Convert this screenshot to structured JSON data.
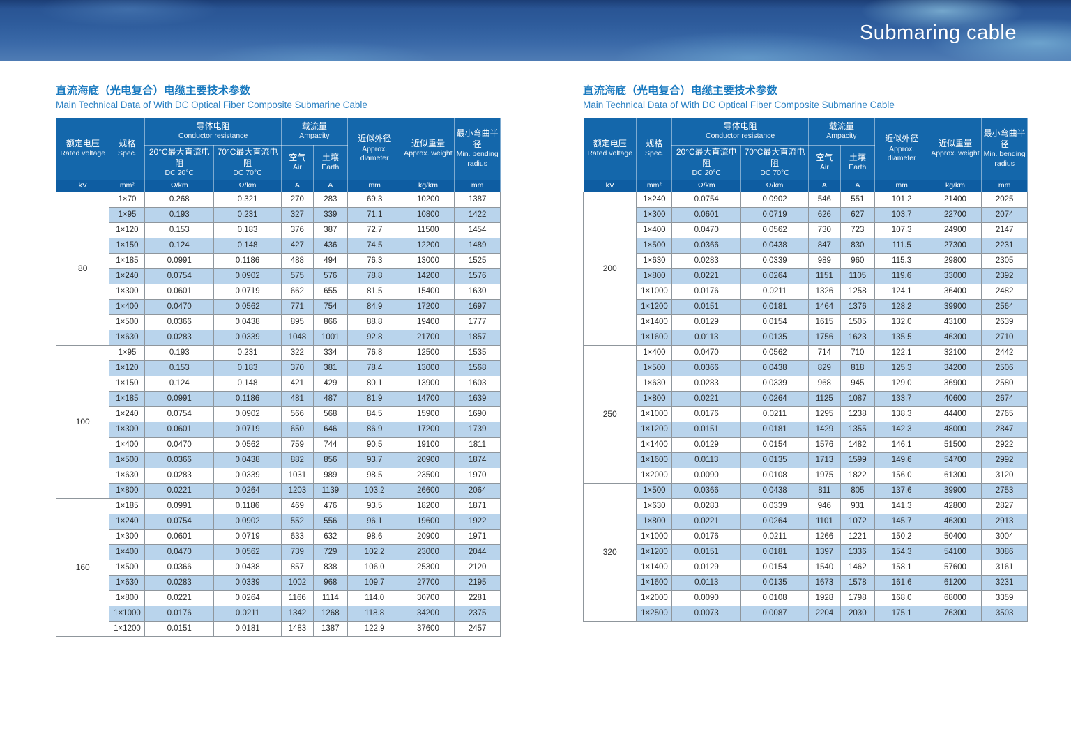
{
  "banner": {
    "title": "Submaring cable"
  },
  "table_header": {
    "groups": {
      "conductor_resistance": {
        "zh": "导体电阻",
        "en": "Conductor resistance"
      },
      "ampacity": {
        "zh": "载流量",
        "en": "Ampacity"
      }
    },
    "columns": [
      {
        "id": "rated_voltage",
        "zh": "额定电压",
        "en": "Rated voltage",
        "unit": "kV"
      },
      {
        "id": "spec",
        "zh": "规格",
        "en": "Spec.",
        "unit": "mm²"
      },
      {
        "id": "dc20",
        "zh": "20°C最大直流电阻",
        "en": "DC 20°C",
        "unit": "Ω/km",
        "group": "conductor_resistance"
      },
      {
        "id": "dc70",
        "zh": "70°C最大直流电阻",
        "en": "DC 70°C",
        "unit": "Ω/km",
        "group": "conductor_resistance"
      },
      {
        "id": "air",
        "zh": "空气",
        "en": "Air",
        "unit": "A",
        "group": "ampacity"
      },
      {
        "id": "earth",
        "zh": "土壤",
        "en": "Earth",
        "unit": "A",
        "group": "ampacity"
      },
      {
        "id": "diameter",
        "zh": "近似外径",
        "en": "Approx. diameter",
        "unit": "mm"
      },
      {
        "id": "weight",
        "zh": "近似重量",
        "en": "Approx. weight",
        "unit": "kg/km"
      },
      {
        "id": "radius",
        "zh": "最小弯曲半径",
        "en": "Min. bending radius",
        "unit": "mm"
      }
    ],
    "col_widths": [
      "12%",
      "8%",
      "15.5%",
      "15.2%",
      "7.2%",
      "7.7%",
      "12.2%",
      "11.9%",
      "10.3%"
    ]
  },
  "tables": [
    {
      "title_zh": "直流海底（光电复合）电缆主要技术参数",
      "title_en": "Main Technical Data of With DC Optical Fiber Composite Submarine Cable",
      "sections": [
        {
          "voltage": "80",
          "rows": [
            [
              "1×70",
              "0.268",
              "0.321",
              "270",
              "283",
              "69.3",
              "10200",
              "1387"
            ],
            [
              "1×95",
              "0.193",
              "0.231",
              "327",
              "339",
              "71.1",
              "10800",
              "1422"
            ],
            [
              "1×120",
              "0.153",
              "0.183",
              "376",
              "387",
              "72.7",
              "11500",
              "1454"
            ],
            [
              "1×150",
              "0.124",
              "0.148",
              "427",
              "436",
              "74.5",
              "12200",
              "1489"
            ],
            [
              "1×185",
              "0.0991",
              "0.1186",
              "488",
              "494",
              "76.3",
              "13000",
              "1525"
            ],
            [
              "1×240",
              "0.0754",
              "0.0902",
              "575",
              "576",
              "78.8",
              "14200",
              "1576"
            ],
            [
              "1×300",
              "0.0601",
              "0.0719",
              "662",
              "655",
              "81.5",
              "15400",
              "1630"
            ],
            [
              "1×400",
              "0.0470",
              "0.0562",
              "771",
              "754",
              "84.9",
              "17200",
              "1697"
            ],
            [
              "1×500",
              "0.0366",
              "0.0438",
              "895",
              "866",
              "88.8",
              "19400",
              "1777"
            ],
            [
              "1×630",
              "0.0283",
              "0.0339",
              "1048",
              "1001",
              "92.8",
              "21700",
              "1857"
            ]
          ]
        },
        {
          "voltage": "100",
          "rows": [
            [
              "1×95",
              "0.193",
              "0.231",
              "322",
              "334",
              "76.8",
              "12500",
              "1535"
            ],
            [
              "1×120",
              "0.153",
              "0.183",
              "370",
              "381",
              "78.4",
              "13000",
              "1568"
            ],
            [
              "1×150",
              "0.124",
              "0.148",
              "421",
              "429",
              "80.1",
              "13900",
              "1603"
            ],
            [
              "1×185",
              "0.0991",
              "0.1186",
              "481",
              "487",
              "81.9",
              "14700",
              "1639"
            ],
            [
              "1×240",
              "0.0754",
              "0.0902",
              "566",
              "568",
              "84.5",
              "15900",
              "1690"
            ],
            [
              "1×300",
              "0.0601",
              "0.0719",
              "650",
              "646",
              "86.9",
              "17200",
              "1739"
            ],
            [
              "1×400",
              "0.0470",
              "0.0562",
              "759",
              "744",
              "90.5",
              "19100",
              "1811"
            ],
            [
              "1×500",
              "0.0366",
              "0.0438",
              "882",
              "856",
              "93.7",
              "20900",
              "1874"
            ],
            [
              "1×630",
              "0.0283",
              "0.0339",
              "1031",
              "989",
              "98.5",
              "23500",
              "1970"
            ],
            [
              "1×800",
              "0.0221",
              "0.0264",
              "1203",
              "1139",
              "103.2",
              "26600",
              "2064"
            ]
          ]
        },
        {
          "voltage": "160",
          "rows": [
            [
              "1×185",
              "0.0991",
              "0.1186",
              "469",
              "476",
              "93.5",
              "18200",
              "1871"
            ],
            [
              "1×240",
              "0.0754",
              "0.0902",
              "552",
              "556",
              "96.1",
              "19600",
              "1922"
            ],
            [
              "1×300",
              "0.0601",
              "0.0719",
              "633",
              "632",
              "98.6",
              "20900",
              "1971"
            ],
            [
              "1×400",
              "0.0470",
              "0.0562",
              "739",
              "729",
              "102.2",
              "23000",
              "2044"
            ],
            [
              "1×500",
              "0.0366",
              "0.0438",
              "857",
              "838",
              "106.0",
              "25300",
              "2120"
            ],
            [
              "1×630",
              "0.0283",
              "0.0339",
              "1002",
              "968",
              "109.7",
              "27700",
              "2195"
            ],
            [
              "1×800",
              "0.0221",
              "0.0264",
              "1166",
              "1114",
              "114.0",
              "30700",
              "2281"
            ],
            [
              "1×1000",
              "0.0176",
              "0.0211",
              "1342",
              "1268",
              "118.8",
              "34200",
              "2375"
            ],
            [
              "1×1200",
              "0.0151",
              "0.0181",
              "1483",
              "1387",
              "122.9",
              "37600",
              "2457"
            ]
          ]
        }
      ]
    },
    {
      "title_zh": "直流海底（光电复合）电缆主要技术参数",
      "title_en": "Main Technical Data of With DC Optical Fiber Composite Submarine Cable",
      "sections": [
        {
          "voltage": "200",
          "rows": [
            [
              "1×240",
              "0.0754",
              "0.0902",
              "546",
              "551",
              "101.2",
              "21400",
              "2025"
            ],
            [
              "1×300",
              "0.0601",
              "0.0719",
              "626",
              "627",
              "103.7",
              "22700",
              "2074"
            ],
            [
              "1×400",
              "0.0470",
              "0.0562",
              "730",
              "723",
              "107.3",
              "24900",
              "2147"
            ],
            [
              "1×500",
              "0.0366",
              "0.0438",
              "847",
              "830",
              "111.5",
              "27300",
              "2231"
            ],
            [
              "1×630",
              "0.0283",
              "0.0339",
              "989",
              "960",
              "115.3",
              "29800",
              "2305"
            ],
            [
              "1×800",
              "0.0221",
              "0.0264",
              "1151",
              "1105",
              "119.6",
              "33000",
              "2392"
            ],
            [
              "1×1000",
              "0.0176",
              "0.0211",
              "1326",
              "1258",
              "124.1",
              "36400",
              "2482"
            ],
            [
              "1×1200",
              "0.0151",
              "0.0181",
              "1464",
              "1376",
              "128.2",
              "39900",
              "2564"
            ],
            [
              "1×1400",
              "0.0129",
              "0.0154",
              "1615",
              "1505",
              "132.0",
              "43100",
              "2639"
            ],
            [
              "1×1600",
              "0.0113",
              "0.0135",
              "1756",
              "1623",
              "135.5",
              "46300",
              "2710"
            ]
          ]
        },
        {
          "voltage": "250",
          "rows": [
            [
              "1×400",
              "0.0470",
              "0.0562",
              "714",
              "710",
              "122.1",
              "32100",
              "2442"
            ],
            [
              "1×500",
              "0.0366",
              "0.0438",
              "829",
              "818",
              "125.3",
              "34200",
              "2506"
            ],
            [
              "1×630",
              "0.0283",
              "0.0339",
              "968",
              "945",
              "129.0",
              "36900",
              "2580"
            ],
            [
              "1×800",
              "0.0221",
              "0.0264",
              "1125",
              "1087",
              "133.7",
              "40600",
              "2674"
            ],
            [
              "1×1000",
              "0.0176",
              "0.0211",
              "1295",
              "1238",
              "138.3",
              "44400",
              "2765"
            ],
            [
              "1×1200",
              "0.0151",
              "0.0181",
              "1429",
              "1355",
              "142.3",
              "48000",
              "2847"
            ],
            [
              "1×1400",
              "0.0129",
              "0.0154",
              "1576",
              "1482",
              "146.1",
              "51500",
              "2922"
            ],
            [
              "1×1600",
              "0.0113",
              "0.0135",
              "1713",
              "1599",
              "149.6",
              "54700",
              "2992"
            ],
            [
              "1×2000",
              "0.0090",
              "0.0108",
              "1975",
              "1822",
              "156.0",
              "61300",
              "3120"
            ]
          ]
        },
        {
          "voltage": "320",
          "rows": [
            [
              "1×500",
              "0.0366",
              "0.0438",
              "811",
              "805",
              "137.6",
              "39900",
              "2753"
            ],
            [
              "1×630",
              "0.0283",
              "0.0339",
              "946",
              "931",
              "141.3",
              "42800",
              "2827"
            ],
            [
              "1×800",
              "0.0221",
              "0.0264",
              "1101",
              "1072",
              "145.7",
              "46300",
              "2913"
            ],
            [
              "1×1000",
              "0.0176",
              "0.0211",
              "1266",
              "1221",
              "150.2",
              "50400",
              "3004"
            ],
            [
              "1×1200",
              "0.0151",
              "0.0181",
              "1397",
              "1336",
              "154.3",
              "54100",
              "3086"
            ],
            [
              "1×1400",
              "0.0129",
              "0.0154",
              "1540",
              "1462",
              "158.1",
              "57600",
              "3161"
            ],
            [
              "1×1600",
              "0.0113",
              "0.0135",
              "1673",
              "1578",
              "161.6",
              "61200",
              "3231"
            ],
            [
              "1×2000",
              "0.0090",
              "0.0108",
              "1928",
              "1798",
              "168.0",
              "68000",
              "3359"
            ],
            [
              "1×2500",
              "0.0073",
              "0.0087",
              "2204",
              "2030",
              "175.1",
              "76300",
              "3503"
            ]
          ]
        }
      ]
    }
  ]
}
